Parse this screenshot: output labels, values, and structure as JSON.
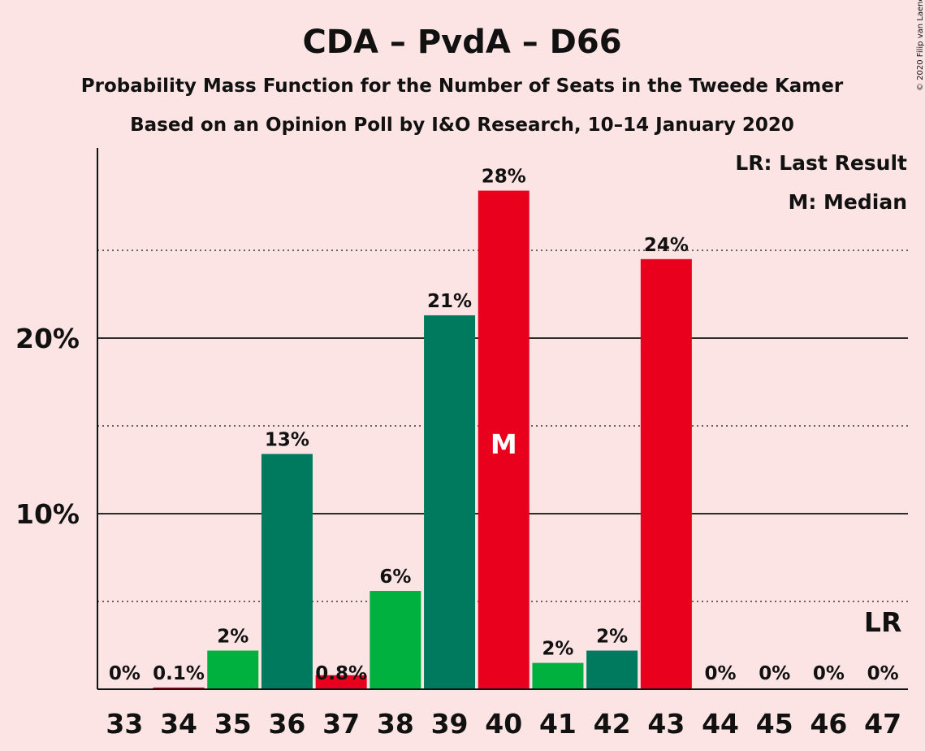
{
  "chart_data": {
    "type": "bar",
    "title": "CDA – PvdA – D66",
    "subtitle": "Probability Mass Function for the Number of Seats in the Tweede Kamer",
    "subtitle2": "Based on an Opinion Poll by I&O Research, 10–14 January 2020",
    "copyright": "© 2020 Filip van Laenen",
    "legend": {
      "last_result": "LR: Last Result",
      "median": "M: Median",
      "placement": "top-right"
    },
    "categories": [
      33,
      34,
      35,
      36,
      37,
      38,
      39,
      40,
      41,
      42,
      43,
      44,
      45,
      46,
      47
    ],
    "values": [
      0,
      0.1,
      2.2,
      13.4,
      0.8,
      5.6,
      21.3,
      28.4,
      1.5,
      2.2,
      24.5,
      0,
      0,
      0,
      0
    ],
    "value_labels": [
      "0%",
      "0.1%",
      "2%",
      "13%",
      "0.8%",
      "6%",
      "21%",
      "28%",
      "2%",
      "2%",
      "24%",
      "0%",
      "0%",
      "0%",
      "0%"
    ],
    "bar_colors": [
      "#00b140",
      "#e8001d",
      "#00b140",
      "#007a5e",
      "#e8001d",
      "#00b140",
      "#007a5e",
      "#e8001d",
      "#00b140",
      "#007a5e",
      "#e8001d",
      "#00b140",
      "#007a5e",
      "#e8001d",
      "#00b140"
    ],
    "median_seat": 40,
    "median_label": "M",
    "last_result_seat": 47,
    "last_result_label": "LR",
    "y_ticks": [
      10,
      20
    ],
    "y_tick_labels": [
      "10%",
      "20%"
    ],
    "y_minor_ticks": [
      5,
      15,
      25
    ],
    "ylim": [
      0,
      31
    ],
    "grid": true
  }
}
